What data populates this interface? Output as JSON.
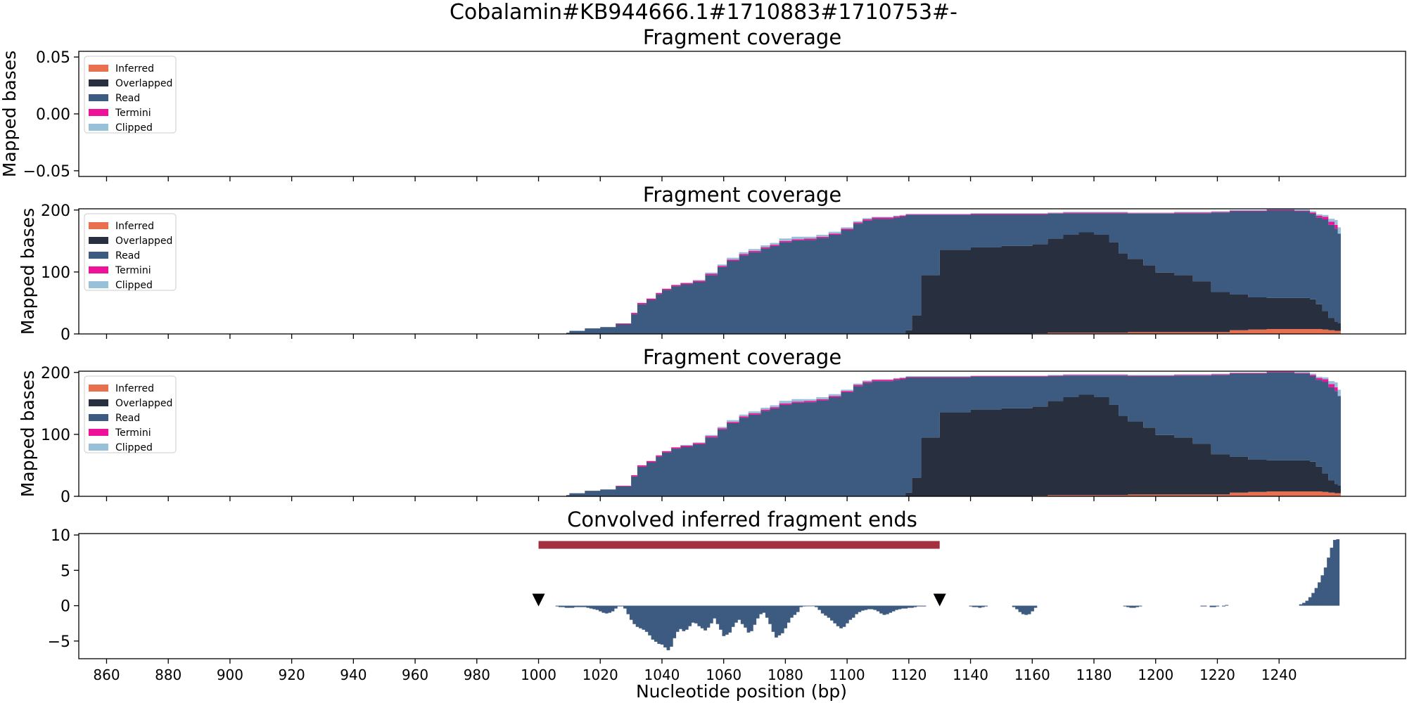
{
  "title": "Cobalamin#KB944666.1#1710883#1710753#-",
  "colors": {
    "Inferred": "#E8704F",
    "Overlapped": "#283040",
    "Read": "#3D5A80",
    "Termini": "#EE1199",
    "Clipped": "#98C1D9",
    "bar": "#A4303F"
  },
  "legend_entries": [
    "Inferred",
    "Overlapped",
    "Read",
    "Termini",
    "Clipped"
  ],
  "xlabel": "Nucleotide position (bp)",
  "chart_data": [
    {
      "type": "area",
      "title": "Fragment coverage",
      "ylabel": "Mapped bases",
      "xlim": [
        851,
        1281
      ],
      "ylim": [
        -0.055,
        0.055
      ],
      "yticks": [
        "0.05",
        "0.00",
        "−0.05"
      ],
      "ytick_values": [
        0.05,
        0,
        -0.05
      ],
      "legend": "top-left",
      "series": []
    },
    {
      "type": "area",
      "title": "Fragment coverage",
      "ylabel": "Mapped bases",
      "xlim": [
        851,
        1281
      ],
      "ylim": [
        0,
        202
      ],
      "yticks": [
        "0",
        "100",
        "200"
      ],
      "ytick_values": [
        0,
        100,
        200
      ],
      "legend": "top-left",
      "stack_order": [
        "Inferred",
        "Overlapped",
        "Read",
        "Termini",
        "Clipped"
      ],
      "x": [
        1009,
        1010,
        1015,
        1020,
        1025,
        1030,
        1032,
        1035,
        1038,
        1040,
        1043,
        1046,
        1050,
        1054,
        1058,
        1061,
        1065,
        1068,
        1072,
        1075,
        1078,
        1082,
        1086,
        1090,
        1094,
        1098,
        1102,
        1105,
        1108,
        1112,
        1115,
        1117,
        1119,
        1121,
        1124,
        1130,
        1140,
        1150,
        1160,
        1165,
        1170,
        1175,
        1180,
        1185,
        1188,
        1191,
        1196,
        1200,
        1206,
        1212,
        1218,
        1224,
        1230,
        1236,
        1240,
        1245,
        1250,
        1252,
        1254,
        1256,
        1258,
        1259
      ],
      "Inferred": [
        0,
        0,
        0,
        0,
        0,
        0,
        0,
        0,
        0,
        0,
        0,
        0,
        0,
        0,
        0,
        0,
        0,
        0,
        0,
        0,
        0,
        0,
        0,
        0,
        0,
        0,
        0,
        0,
        0,
        0,
        0,
        0,
        0,
        0,
        0,
        0,
        0,
        0,
        1,
        2,
        2,
        2,
        2,
        2,
        2,
        3,
        3,
        3,
        3,
        3,
        3,
        6,
        7,
        8,
        8,
        8,
        8,
        8,
        7,
        6,
        5,
        5
      ],
      "Overlapped": [
        0,
        0,
        0,
        0,
        0,
        0,
        0,
        0,
        0,
        0,
        0,
        0,
        0,
        0,
        0,
        0,
        0,
        0,
        0,
        0,
        0,
        0,
        0,
        0,
        0,
        0,
        0,
        0,
        0,
        0,
        0,
        0,
        6,
        30,
        95,
        136,
        140,
        142,
        144,
        152,
        158,
        162,
        158,
        146,
        128,
        118,
        108,
        96,
        92,
        82,
        65,
        58,
        52,
        50,
        50,
        50,
        48,
        40,
        30,
        20,
        15,
        12
      ],
      "Read": [
        2,
        5,
        9,
        11,
        16,
        32,
        48,
        55,
        64,
        71,
        77,
        80,
        84,
        95,
        108,
        118,
        127,
        132,
        138,
        142,
        148,
        151,
        152,
        155,
        160,
        168,
        178,
        183,
        186,
        186,
        188,
        189,
        186,
        162,
        97,
        56,
        53,
        51,
        48,
        40,
        35,
        31,
        35,
        47,
        65,
        73,
        83,
        95,
        100,
        110,
        128,
        134,
        139,
        142,
        142,
        140,
        138,
        140,
        148,
        150,
        150,
        145
      ],
      "Termini": [
        0,
        0,
        0,
        0,
        1,
        2,
        2,
        2,
        2,
        2,
        2,
        2,
        2,
        2,
        2,
        2,
        2,
        2,
        2,
        2,
        2,
        2,
        2,
        2,
        2,
        2,
        2,
        2,
        2,
        2,
        2,
        2,
        1,
        1,
        1,
        1,
        1,
        1,
        1,
        1,
        1,
        1,
        1,
        1,
        1,
        1,
        1,
        1,
        1,
        1,
        1,
        1,
        1,
        1,
        1,
        1,
        2,
        3,
        4,
        5,
        6,
        0
      ],
      "Clipped": [
        0,
        0,
        0,
        0,
        0,
        0,
        0,
        0,
        0,
        0,
        0,
        1,
        1,
        2,
        2,
        3,
        3,
        3,
        3,
        3,
        4,
        4,
        3,
        3,
        3,
        2,
        2,
        2,
        1,
        1,
        1,
        1,
        1,
        1,
        1,
        1,
        1,
        1,
        1,
        1,
        1,
        1,
        1,
        1,
        1,
        1,
        1,
        1,
        1,
        1,
        1,
        1,
        1,
        1,
        1,
        2,
        2,
        2,
        3,
        5,
        8,
        10
      ]
    },
    {
      "type": "area",
      "title": "Fragment coverage",
      "ylabel": "Mapped bases",
      "xlim": [
        851,
        1281
      ],
      "ylim": [
        0,
        202
      ],
      "yticks": [
        "0",
        "100",
        "200"
      ],
      "ytick_values": [
        0,
        100,
        200
      ],
      "legend": "top-left",
      "stack_order": [
        "Inferred",
        "Overlapped",
        "Read",
        "Termini",
        "Clipped"
      ],
      "x": [
        1009,
        1010,
        1015,
        1020,
        1025,
        1030,
        1032,
        1035,
        1038,
        1040,
        1043,
        1046,
        1050,
        1054,
        1058,
        1061,
        1065,
        1068,
        1072,
        1075,
        1078,
        1082,
        1086,
        1090,
        1094,
        1098,
        1102,
        1105,
        1108,
        1112,
        1115,
        1117,
        1119,
        1121,
        1124,
        1130,
        1140,
        1150,
        1160,
        1165,
        1170,
        1175,
        1180,
        1185,
        1188,
        1191,
        1196,
        1200,
        1206,
        1212,
        1218,
        1224,
        1230,
        1236,
        1240,
        1245,
        1250,
        1252,
        1254,
        1256,
        1258,
        1259
      ],
      "Inferred": [
        0,
        0,
        0,
        0,
        0,
        0,
        0,
        0,
        0,
        0,
        0,
        0,
        0,
        0,
        0,
        0,
        0,
        0,
        0,
        0,
        0,
        0,
        0,
        0,
        0,
        0,
        0,
        0,
        0,
        0,
        0,
        0,
        0,
        0,
        0,
        0,
        0,
        0,
        1,
        2,
        2,
        2,
        2,
        2,
        2,
        3,
        3,
        3,
        3,
        3,
        3,
        6,
        7,
        8,
        8,
        8,
        8,
        8,
        7,
        6,
        5,
        5
      ],
      "Overlapped": [
        0,
        0,
        0,
        0,
        0,
        0,
        0,
        0,
        0,
        0,
        0,
        0,
        0,
        0,
        0,
        0,
        0,
        0,
        0,
        0,
        0,
        0,
        0,
        0,
        0,
        0,
        0,
        0,
        0,
        0,
        0,
        0,
        6,
        30,
        95,
        136,
        140,
        142,
        144,
        152,
        158,
        162,
        158,
        146,
        128,
        118,
        108,
        96,
        92,
        82,
        65,
        58,
        52,
        50,
        50,
        50,
        48,
        40,
        30,
        20,
        15,
        12
      ],
      "Read": [
        2,
        5,
        9,
        11,
        16,
        32,
        48,
        55,
        64,
        71,
        77,
        80,
        84,
        95,
        108,
        118,
        127,
        132,
        138,
        142,
        148,
        151,
        152,
        155,
        160,
        168,
        178,
        183,
        186,
        186,
        188,
        189,
        186,
        162,
        97,
        56,
        53,
        51,
        48,
        40,
        35,
        31,
        35,
        47,
        65,
        73,
        83,
        95,
        100,
        110,
        128,
        134,
        139,
        142,
        142,
        140,
        138,
        140,
        148,
        150,
        150,
        145
      ],
      "Termini": [
        0,
        0,
        0,
        0,
        1,
        2,
        2,
        2,
        2,
        2,
        2,
        2,
        2,
        2,
        2,
        2,
        2,
        2,
        2,
        2,
        2,
        2,
        2,
        2,
        2,
        2,
        2,
        2,
        2,
        2,
        2,
        2,
        1,
        1,
        1,
        1,
        1,
        1,
        1,
        1,
        1,
        1,
        1,
        1,
        1,
        1,
        1,
        1,
        1,
        1,
        1,
        1,
        1,
        1,
        1,
        1,
        2,
        3,
        4,
        5,
        6,
        0
      ],
      "Clipped": [
        0,
        0,
        0,
        0,
        0,
        0,
        0,
        0,
        0,
        0,
        0,
        1,
        1,
        2,
        2,
        3,
        3,
        3,
        3,
        3,
        4,
        4,
        3,
        3,
        3,
        2,
        2,
        2,
        1,
        1,
        1,
        1,
        1,
        1,
        1,
        1,
        1,
        1,
        1,
        1,
        1,
        1,
        1,
        1,
        1,
        1,
        1,
        1,
        1,
        1,
        1,
        1,
        1,
        1,
        1,
        2,
        2,
        2,
        3,
        5,
        8,
        10
      ]
    },
    {
      "type": "bar",
      "title": "Convolved inferred fragment ends",
      "xlabel": "Nucleotide position (bp)",
      "xlim": [
        851,
        1281
      ],
      "ylim": [
        -7.5,
        10.2
      ],
      "yticks": [
        "10",
        "5",
        "0",
        "−5"
      ],
      "ytick_values": [
        10,
        5,
        0,
        -5
      ],
      "xticks": [
        "860",
        "880",
        "900",
        "920",
        "940",
        "960",
        "980",
        "1000",
        "1020",
        "1040",
        "1060",
        "1080",
        "1100",
        "1120",
        "1140",
        "1160",
        "1180",
        "1200",
        "1220",
        "1240"
      ],
      "xtick_values": [
        860,
        880,
        900,
        920,
        940,
        960,
        980,
        1000,
        1020,
        1040,
        1060,
        1080,
        1100,
        1120,
        1140,
        1160,
        1180,
        1200,
        1220,
        1240
      ],
      "range_bar": {
        "start": 1000,
        "end": 1130,
        "y": 8.6
      },
      "markers": [
        {
          "x": 1000,
          "y": 0.8
        },
        {
          "x": 1130,
          "y": 0.8
        }
      ],
      "x": [
        1006,
        1007,
        1008,
        1009,
        1010,
        1011,
        1012,
        1013,
        1014,
        1015,
        1016,
        1017,
        1018,
        1019,
        1020,
        1021,
        1022,
        1023,
        1024,
        1025,
        1026,
        1027,
        1028,
        1029,
        1030,
        1031,
        1032,
        1033,
        1034,
        1035,
        1036,
        1037,
        1038,
        1039,
        1040,
        1041,
        1042,
        1043,
        1044,
        1045,
        1046,
        1047,
        1048,
        1049,
        1050,
        1051,
        1052,
        1053,
        1054,
        1055,
        1056,
        1057,
        1058,
        1059,
        1060,
        1061,
        1062,
        1063,
        1064,
        1065,
        1066,
        1067,
        1068,
        1069,
        1070,
        1071,
        1072,
        1073,
        1074,
        1075,
        1076,
        1077,
        1078,
        1079,
        1080,
        1081,
        1082,
        1083,
        1084,
        1085,
        1086,
        1087,
        1088,
        1089,
        1090,
        1091,
        1092,
        1093,
        1094,
        1095,
        1096,
        1097,
        1098,
        1099,
        1100,
        1101,
        1102,
        1103,
        1104,
        1105,
        1106,
        1107,
        1108,
        1109,
        1110,
        1111,
        1112,
        1113,
        1114,
        1115,
        1116,
        1117,
        1118,
        1119,
        1120,
        1121,
        1122,
        1123,
        1124,
        1125,
        1140,
        1141,
        1142,
        1143,
        1144,
        1145,
        1154,
        1155,
        1156,
        1157,
        1158,
        1159,
        1160,
        1161,
        1190,
        1191,
        1192,
        1193,
        1194,
        1195,
        1215,
        1216,
        1218,
        1219,
        1220,
        1222,
        1223,
        1247,
        1248,
        1249,
        1250,
        1251,
        1252,
        1253,
        1254,
        1255,
        1256,
        1257,
        1258,
        1259
      ],
      "values": [
        -0.1,
        -0.2,
        -0.2,
        -0.3,
        -0.3,
        -0.3,
        -0.2,
        -0.2,
        -0.2,
        -0.2,
        -0.3,
        -0.4,
        -0.5,
        -0.6,
        -0.8,
        -1.0,
        -1.1,
        -1.0,
        -0.8,
        -0.4,
        -0.1,
        -0.1,
        -0.4,
        -1.2,
        -2.0,
        -2.6,
        -3.0,
        -3.2,
        -3.4,
        -3.7,
        -4.2,
        -4.8,
        -5.1,
        -5.4,
        -5.5,
        -5.9,
        -6.3,
        -5.8,
        -4.6,
        -3.7,
        -3.3,
        -3.6,
        -3.4,
        -2.9,
        -2.4,
        -2.5,
        -2.9,
        -3.2,
        -3.5,
        -3.1,
        -2.5,
        -1.8,
        -2.6,
        -3.4,
        -4.3,
        -4.1,
        -3.8,
        -3.0,
        -2.4,
        -2.0,
        -2.6,
        -3.1,
        -3.8,
        -3.6,
        -2.7,
        -1.8,
        -1.2,
        -1.0,
        -1.7,
        -2.6,
        -3.7,
        -4.5,
        -4.2,
        -3.9,
        -3.2,
        -2.4,
        -1.7,
        -1.3,
        -0.9,
        -0.2,
        -0.1,
        0.0,
        0.0,
        0.0,
        -0.2,
        -0.6,
        -1.1,
        -1.4,
        -1.7,
        -2.1,
        -2.5,
        -2.9,
        -3.2,
        -3.0,
        -2.5,
        -2.0,
        -1.7,
        -1.2,
        -0.9,
        -0.7,
        -0.6,
        -0.5,
        -0.5,
        -0.6,
        -0.8,
        -1.1,
        -1.3,
        -1.2,
        -1.0,
        -0.8,
        -0.6,
        -0.5,
        -0.4,
        -0.4,
        -0.3,
        -0.3,
        -0.2,
        -0.1,
        -0.1,
        -0.1,
        -0.1,
        -0.2,
        -0.2,
        -0.3,
        -0.2,
        -0.1,
        -0.2,
        -0.5,
        -0.9,
        -1.2,
        -1.3,
        -1.2,
        -0.8,
        -0.3,
        -0.1,
        -0.2,
        -0.3,
        -0.3,
        -0.2,
        -0.1,
        -0.1,
        -0.1,
        -0.2,
        -0.2,
        -0.1,
        -0.1,
        0.1,
        0.2,
        0.4,
        0.7,
        1.2,
        1.8,
        2.5,
        3.3,
        4.3,
        5.4,
        6.8,
        8.2,
        9.3,
        9.4
      ]
    }
  ]
}
